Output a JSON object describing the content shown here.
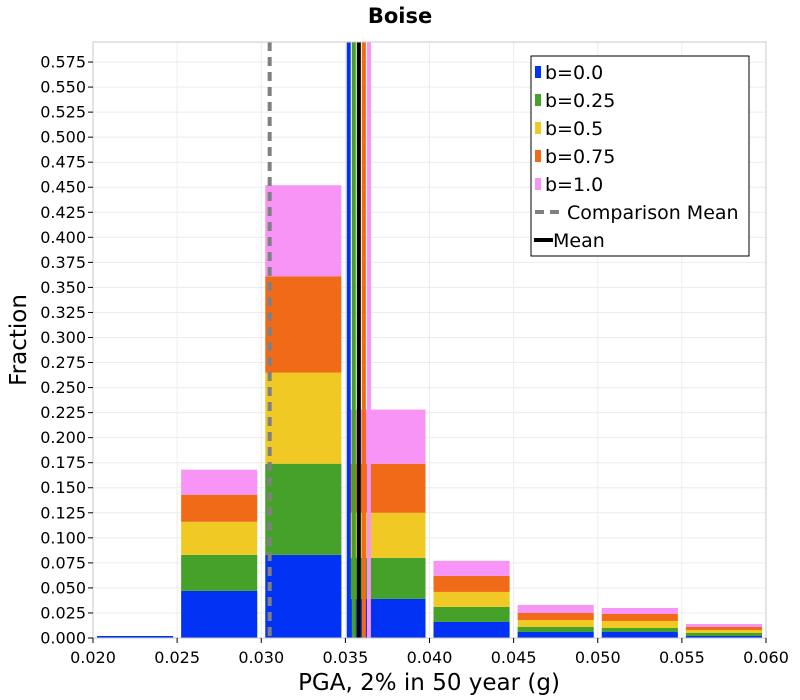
{
  "chart_data": {
    "type": "bar",
    "stacked": true,
    "title": "Boise",
    "xlabel": "PGA, 2% in 50 year (g)",
    "ylabel": "Fraction",
    "xlim": [
      0.02,
      0.06
    ],
    "ylim": [
      0,
      0.595
    ],
    "grid": true,
    "legend_position": "top-right",
    "xticks": [
      "0.020",
      "0.025",
      "0.030",
      "0.035",
      "0.040",
      "0.045",
      "0.050",
      "0.055",
      "0.060"
    ],
    "yticks": [
      "0.000",
      "0.025",
      "0.050",
      "0.075",
      "0.100",
      "0.125",
      "0.150",
      "0.175",
      "0.200",
      "0.225",
      "0.250",
      "0.275",
      "0.300",
      "0.325",
      "0.350",
      "0.375",
      "0.400",
      "0.425",
      "0.450",
      "0.475",
      "0.500",
      "0.525",
      "0.550",
      "0.575"
    ],
    "bins": [
      {
        "start": 0.02,
        "end": 0.025
      },
      {
        "start": 0.025,
        "end": 0.03
      },
      {
        "start": 0.03,
        "end": 0.035
      },
      {
        "start": 0.035,
        "end": 0.04
      },
      {
        "start": 0.04,
        "end": 0.045
      },
      {
        "start": 0.045,
        "end": 0.05
      },
      {
        "start": 0.05,
        "end": 0.055
      },
      {
        "start": 0.055,
        "end": 0.06
      }
    ],
    "series": [
      {
        "name": "b=0.0",
        "color": "#0233f5",
        "values": [
          0.002,
          0.047,
          0.083,
          0.039,
          0.016,
          0.006,
          0.006,
          0.002
        ]
      },
      {
        "name": "b=0.25",
        "color": "#46a12a",
        "values": [
          0.0,
          0.036,
          0.091,
          0.041,
          0.015,
          0.005,
          0.004,
          0.003
        ]
      },
      {
        "name": "b=0.5",
        "color": "#f1c924",
        "values": [
          0.0,
          0.033,
          0.091,
          0.045,
          0.015,
          0.007,
          0.007,
          0.003
        ]
      },
      {
        "name": "b=0.75",
        "color": "#f06a17",
        "values": [
          0.0,
          0.027,
          0.096,
          0.049,
          0.016,
          0.007,
          0.007,
          0.003
        ]
      },
      {
        "name": "b=1.0",
        "color": "#f794f5",
        "values": [
          0.0,
          0.025,
          0.091,
          0.054,
          0.015,
          0.008,
          0.006,
          0.003
        ]
      }
    ],
    "vertical_lines": [
      {
        "name": "b=0.0",
        "x": 0.0352,
        "color": "#0233f5"
      },
      {
        "name": "b=0.25",
        "x": 0.0355,
        "color": "#46a12a"
      },
      {
        "name": "b=0.5",
        "x": 0.0358,
        "color": "#f1c924"
      },
      {
        "name": "b=0.75",
        "x": 0.0361,
        "color": "#f06a17"
      },
      {
        "name": "b=1.0",
        "x": 0.0364,
        "color": "#f794f5"
      },
      {
        "name": "Comparison Mean",
        "x": 0.0305,
        "color": "#808080",
        "style": "dashed"
      },
      {
        "name": "Mean",
        "x": 0.0358,
        "color": "#000000",
        "style": "solid"
      }
    ],
    "legend": [
      {
        "label": "b=0.0",
        "color": "#0233f5",
        "kind": "swatch"
      },
      {
        "label": "b=0.25",
        "color": "#46a12a",
        "kind": "swatch"
      },
      {
        "label": "b=0.5",
        "color": "#f1c924",
        "kind": "swatch"
      },
      {
        "label": "b=0.75",
        "color": "#f06a17",
        "kind": "swatch"
      },
      {
        "label": "b=1.0",
        "color": "#f794f5",
        "kind": "swatch"
      },
      {
        "label": "Comparison Mean",
        "color": "#808080",
        "kind": "dashed"
      },
      {
        "label": "Mean",
        "color": "#000000",
        "kind": "solid"
      }
    ]
  }
}
